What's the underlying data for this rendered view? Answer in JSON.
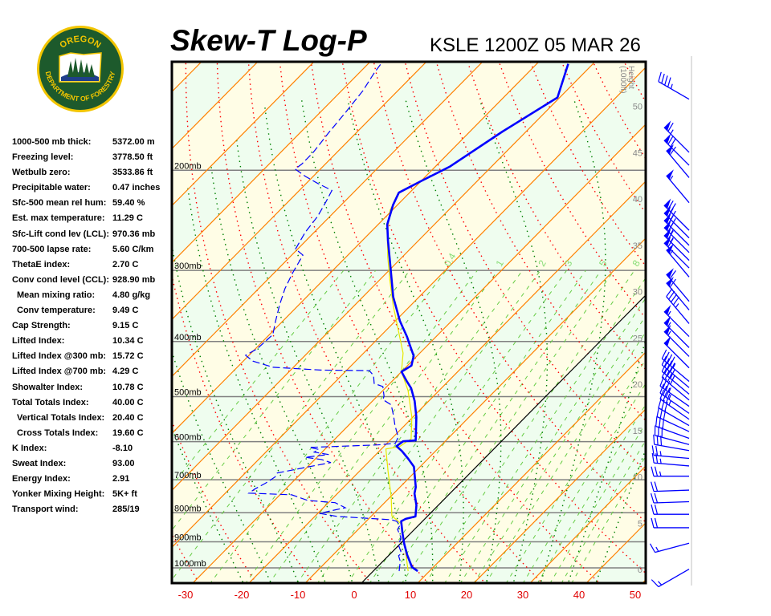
{
  "logo": {
    "top_text": "OREGON",
    "bottom_text": "DEPARTMENT OF FORESTRY",
    "colors": {
      "ring": "#f2c500",
      "field": "#1d5a2c"
    }
  },
  "header": {
    "title": "Skew-T Log-P",
    "station": "KSLE 1200Z 05 MAR 26"
  },
  "stats": [
    {
      "label": "1000-500 mb thick:",
      "value": "5372.00 m"
    },
    {
      "label": "Freezing level:",
      "value": "3778.50 ft"
    },
    {
      "label": "Wetbulb zero:",
      "value": "3533.86 ft"
    },
    {
      "label": "Precipitable water:",
      "value": "0.47 inches"
    },
    {
      "label": "Sfc-500 mean rel hum:",
      "value": "59.40 %"
    },
    {
      "label": "Est. max temperature:",
      "value": "11.29 C"
    },
    {
      "label": "Sfc-Lift cond lev (LCL):",
      "value": "970.36 mb"
    },
    {
      "label": "700-500 lapse rate:",
      "value": "5.60 C/km"
    },
    {
      "label": "ThetaE index:",
      "value": "2.70 C"
    },
    {
      "label": "Conv cond level (CCL):",
      "value": "928.90 mb"
    },
    {
      "label": "Mean mixing ratio:",
      "value": "4.80 g/kg",
      "indent": true
    },
    {
      "label": "Conv temperature:",
      "value": "9.49 C",
      "indent": true
    },
    {
      "label": "Cap Strength:",
      "value": "9.15 C"
    },
    {
      "label": "Lifted Index:",
      "value": "10.34 C"
    },
    {
      "label": "Lifted Index @300 mb:",
      "value": "15.72 C"
    },
    {
      "label": "Lifted Index @700 mb:",
      "value": "4.29 C"
    },
    {
      "label": "Showalter Index:",
      "value": "10.78 C"
    },
    {
      "label": "Total Totals Index:",
      "value": "40.00 C"
    },
    {
      "label": "Vertical Totals Index:",
      "value": "20.40 C",
      "indent": true
    },
    {
      "label": "Cross Totals Index:",
      "value": "19.60 C",
      "indent": true
    },
    {
      "label": "K Index:",
      "value": "-8.10"
    },
    {
      "label": "Sweat Index:",
      "value": "93.00"
    },
    {
      "label": "Energy Index:",
      "value": "2.91"
    },
    {
      "label": "Yonker Mixing Height:",
      "value": "5K+ ft"
    },
    {
      "label": "Transport wind:",
      "value": "285/19"
    }
  ],
  "chart_data": {
    "type": "skew-t log-p",
    "x_axis": {
      "unit": "C",
      "ticks": [
        -30,
        -20,
        -10,
        0,
        10,
        20,
        30,
        40,
        50
      ],
      "tick_color": "#e00000"
    },
    "y_axis": {
      "scale": "log",
      "range_mb": [
        1075,
        129
      ],
      "pressure_levels": [
        1000,
        900,
        800,
        700,
        600,
        500,
        400,
        300,
        200
      ],
      "pressure_labels": [
        "1000mb",
        "900mb",
        "800mb",
        "700mb",
        "600mb",
        "500mb",
        "400mb",
        "300mb",
        "200mb"
      ]
    },
    "height_axis": {
      "title": "Height",
      "unit_label": "(1000ft)",
      "ticks": [
        0,
        5,
        10,
        15,
        20,
        25,
        30,
        35,
        40,
        45,
        50
      ]
    },
    "mixing_ratio_labels": [
      "0.4",
      "1",
      "2",
      "3",
      "5",
      "8"
    ],
    "mixing_ratio_label_values": [
      0.4,
      1,
      2,
      3,
      5,
      8
    ],
    "colors": {
      "isotherm": "#ff8000",
      "zero_isotherm": "#000000",
      "dry_adiabat": "#ff0000",
      "moist_adiabat": "#008000",
      "mixing_ratio": "#66cc44",
      "temperature": "#0000ff",
      "dewpoint": "#0000ff",
      "yellow_trace": "#e8e800",
      "band_a": "#effdef",
      "band_b": "#fffde6",
      "wind": "#0000ff"
    },
    "temperature": {
      "p": [
        1013,
        997,
        949,
        907,
        870,
        828,
        820,
        812,
        776,
        740,
        721,
        664,
        643,
        623,
        611,
        599,
        597,
        543,
        509,
        483,
        469,
        452,
        449,
        441,
        424,
        405,
        392,
        368,
        334,
        293,
        266,
        249,
        230,
        219,
        209,
        197,
        171,
        149,
        130
      ],
      "t": [
        7.9,
        6.2,
        3.2,
        0.7,
        -1.4,
        -3.8,
        -3.4,
        -2.1,
        -3.9,
        -6.3,
        -7.2,
        -11.1,
        -13.5,
        -16.0,
        -17.8,
        -17.5,
        -15.4,
        -19.4,
        -22.5,
        -25.4,
        -27.5,
        -30.0,
        -29.8,
        -29.3,
        -30.6,
        -33.3,
        -35.2,
        -39.2,
        -44.6,
        -50.8,
        -55.4,
        -58.4,
        -60.8,
        -61.9,
        -60.0,
        -57.4,
        -54.2,
        -50.4,
        -54.4
      ]
    },
    "dewpoint": {
      "p": [
        1013,
        974,
        952,
        943,
        913,
        884,
        856,
        842,
        828,
        823,
        812,
        802,
        784,
        768,
        761,
        744,
        739,
        727,
        710,
        692,
        681,
        666,
        653,
        645,
        639,
        632,
        626,
        619,
        614,
        608,
        604,
        589,
        561,
        540,
        517,
        506,
        499,
        480,
        474,
        459,
        450,
        449,
        444,
        433,
        423,
        412,
        389,
        368,
        345,
        323,
        303,
        282,
        275,
        257,
        241,
        228,
        217,
        211,
        205,
        199,
        195,
        186,
        172,
        158,
        145,
        135,
        129
      ],
      "t": [
        4.6,
        3.1,
        1.8,
        1.9,
        0.0,
        -1.0,
        -3.0,
        -3.3,
        -4.6,
        -5.8,
        -16.0,
        -19.7,
        -16.1,
        -18.8,
        -24.1,
        -27.9,
        -35.8,
        -35.5,
        -34.6,
        -34.0,
        -34.3,
        -30.3,
        -26.6,
        -28.8,
        -32.1,
        -28.4,
        -31.4,
        -31.1,
        -33.1,
        -21.4,
        -18.5,
        -19.1,
        -21.8,
        -23.7,
        -26.0,
        -28.4,
        -28.8,
        -30.7,
        -32.8,
        -34.3,
        -35.9,
        -44.6,
        -53.6,
        -58.3,
        -60.6,
        -59.7,
        -59.4,
        -61.3,
        -63.4,
        -65.3,
        -66.7,
        -68.0,
        -70.4,
        -71.6,
        -72.2,
        -73.2,
        -74.2,
        -77.9,
        -81.4,
        -84.5,
        -84.2,
        -84.2,
        -84.9,
        -85.5,
        -86.2,
        -87.3,
        -87.8
      ]
    },
    "yellow_trace": {
      "p": [
        1013,
        934,
        837,
        810,
        751,
        675,
        618,
        612,
        593,
        543,
        488,
        452,
        419,
        392,
        345,
        313,
        284,
        257,
        235,
        219
      ],
      "t": [
        6.2,
        2.2,
        -3.3,
        -6.4,
        -9.8,
        -15.0,
        -19.2,
        -17.2,
        -16.5,
        -20.2,
        -25.5,
        -30.0,
        -33.0,
        -36.5,
        -43.2,
        -48.0,
        -52.6,
        -57.0,
        -60.4,
        -61.9
      ]
    },
    "winds": [
      {
        "p": 150,
        "dir": 300,
        "kt": 45
      },
      {
        "p": 186,
        "dir": 315,
        "kt": 65
      },
      {
        "p": 196,
        "dir": 315,
        "kt": 70
      },
      {
        "p": 206,
        "dir": 320,
        "kt": 60
      },
      {
        "p": 228,
        "dir": 320,
        "kt": 55
      },
      {
        "p": 255,
        "dir": 315,
        "kt": 70
      },
      {
        "p": 263,
        "dir": 315,
        "kt": 70
      },
      {
        "p": 271,
        "dir": 315,
        "kt": 70
      },
      {
        "p": 279,
        "dir": 315,
        "kt": 65
      },
      {
        "p": 288,
        "dir": 315,
        "kt": 65
      },
      {
        "p": 297,
        "dir": 315,
        "kt": 60
      },
      {
        "p": 308,
        "dir": 320,
        "kt": 55
      },
      {
        "p": 340,
        "dir": 320,
        "kt": 60
      },
      {
        "p": 352,
        "dir": 320,
        "kt": 60
      },
      {
        "p": 372,
        "dir": 320,
        "kt": 45
      },
      {
        "p": 392,
        "dir": 315,
        "kt": 55
      },
      {
        "p": 410,
        "dir": 315,
        "kt": 55
      },
      {
        "p": 425,
        "dir": 315,
        "kt": 55
      },
      {
        "p": 445,
        "dir": 315,
        "kt": 50
      },
      {
        "p": 470,
        "dir": 310,
        "kt": 45
      },
      {
        "p": 482,
        "dir": 310,
        "kt": 40
      },
      {
        "p": 495,
        "dir": 310,
        "kt": 40
      },
      {
        "p": 507,
        "dir": 310,
        "kt": 40
      },
      {
        "p": 520,
        "dir": 305,
        "kt": 35
      },
      {
        "p": 535,
        "dir": 305,
        "kt": 35
      },
      {
        "p": 548,
        "dir": 305,
        "kt": 35
      },
      {
        "p": 562,
        "dir": 300,
        "kt": 30
      },
      {
        "p": 576,
        "dir": 295,
        "kt": 30
      },
      {
        "p": 592,
        "dir": 290,
        "kt": 30
      },
      {
        "p": 607,
        "dir": 285,
        "kt": 30
      },
      {
        "p": 622,
        "dir": 280,
        "kt": 30
      },
      {
        "p": 642,
        "dir": 275,
        "kt": 25
      },
      {
        "p": 662,
        "dir": 275,
        "kt": 25
      },
      {
        "p": 690,
        "dir": 270,
        "kt": 25
      },
      {
        "p": 730,
        "dir": 268,
        "kt": 20
      },
      {
        "p": 765,
        "dir": 268,
        "kt": 20
      },
      {
        "p": 805,
        "dir": 270,
        "kt": 20
      },
      {
        "p": 850,
        "dir": 270,
        "kt": 20
      },
      {
        "p": 905,
        "dir": 255,
        "kt": 15
      },
      {
        "p": 1005,
        "dir": 240,
        "kt": 15
      }
    ]
  }
}
